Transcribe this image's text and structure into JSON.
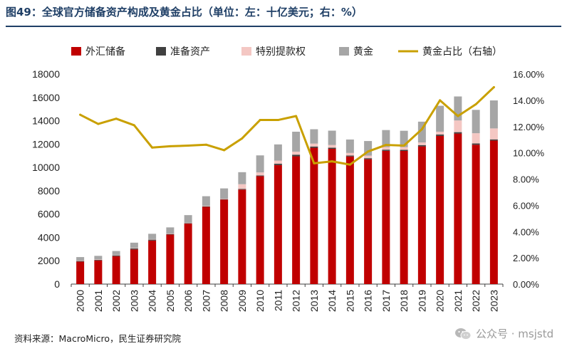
{
  "header": {
    "title": "图49：全球官方储备资产构成及黄金占比（单位：左：十亿美元；右：%）"
  },
  "footer": {
    "source": "资料来源：MacroMicro，民生证券研究院",
    "watermark": "公众号 · msjstd"
  },
  "chart_data": {
    "type": "bar",
    "stacked": true,
    "categories": [
      "2000",
      "2001",
      "2002",
      "2003",
      "2004",
      "2005",
      "2006",
      "2007",
      "2008",
      "2009",
      "2010",
      "2011",
      "2012",
      "2013",
      "2014",
      "2015",
      "2016",
      "2017",
      "2018",
      "2019",
      "2020",
      "2021",
      "2022",
      "2023"
    ],
    "series": [
      {
        "name": "外汇储备",
        "color": "#c00000",
        "axis": "left",
        "values": [
          1920,
          2030,
          2390,
          2970,
          3730,
          4240,
          5180,
          6620,
          7240,
          8100,
          9250,
          10200,
          10950,
          11680,
          11590,
          10940,
          10700,
          11420,
          11410,
          11800,
          12700,
          12900,
          11940,
          12300
        ]
      },
      {
        "name": "准备资产",
        "color": "#404040",
        "axis": "left",
        "values": [
          55,
          60,
          75,
          90,
          80,
          50,
          40,
          30,
          40,
          60,
          60,
          120,
          140,
          110,
          100,
          80,
          90,
          100,
          100,
          110,
          120,
          120,
          110,
          100
        ]
      },
      {
        "name": "特别提款权",
        "color": "#f4c7c3",
        "axis": "left",
        "values": [
          40,
          40,
          40,
          40,
          40,
          40,
          40,
          40,
          40,
          400,
          260,
          260,
          260,
          250,
          230,
          220,
          220,
          230,
          230,
          230,
          240,
          1000,
          880,
          940
        ]
      },
      {
        "name": "黄金",
        "color": "#a6a6a6",
        "axis": "left",
        "values": [
          300,
          290,
          330,
          450,
          460,
          530,
          650,
          840,
          880,
          1030,
          1460,
          1390,
          1710,
          1230,
          1230,
          1150,
          1250,
          1450,
          1400,
          1780,
          2220,
          2060,
          2000,
          2400
        ]
      },
      {
        "name": "黄金占比（右轴）",
        "color": "#c9a000",
        "type": "line",
        "axis": "right",
        "values": [
          12.9,
          12.2,
          12.6,
          12.1,
          10.4,
          10.5,
          10.55,
          10.62,
          10.2,
          11.1,
          12.5,
          12.5,
          12.8,
          9.2,
          9.35,
          9.1,
          10.1,
          10.6,
          10.55,
          11.8,
          14.0,
          12.8,
          13.7,
          15.0
        ]
      }
    ],
    "y_left": {
      "min": 0,
      "max": 18000,
      "ticks": [
        "0",
        "2000",
        "4000",
        "6000",
        "8000",
        "10000",
        "12000",
        "14000",
        "16000",
        "18000"
      ]
    },
    "y_right": {
      "min": 0,
      "max": 16,
      "ticks": [
        "0.00%",
        "2.00%",
        "4.00%",
        "6.00%",
        "8.00%",
        "10.00%",
        "12.00%",
        "14.00%",
        "16.00%"
      ]
    },
    "legend": {
      "placement": "top",
      "entries": [
        "外汇储备",
        "准备资产",
        "特别提款权",
        "黄金",
        "黄金占比（右轴）"
      ]
    },
    "grid": false
  }
}
